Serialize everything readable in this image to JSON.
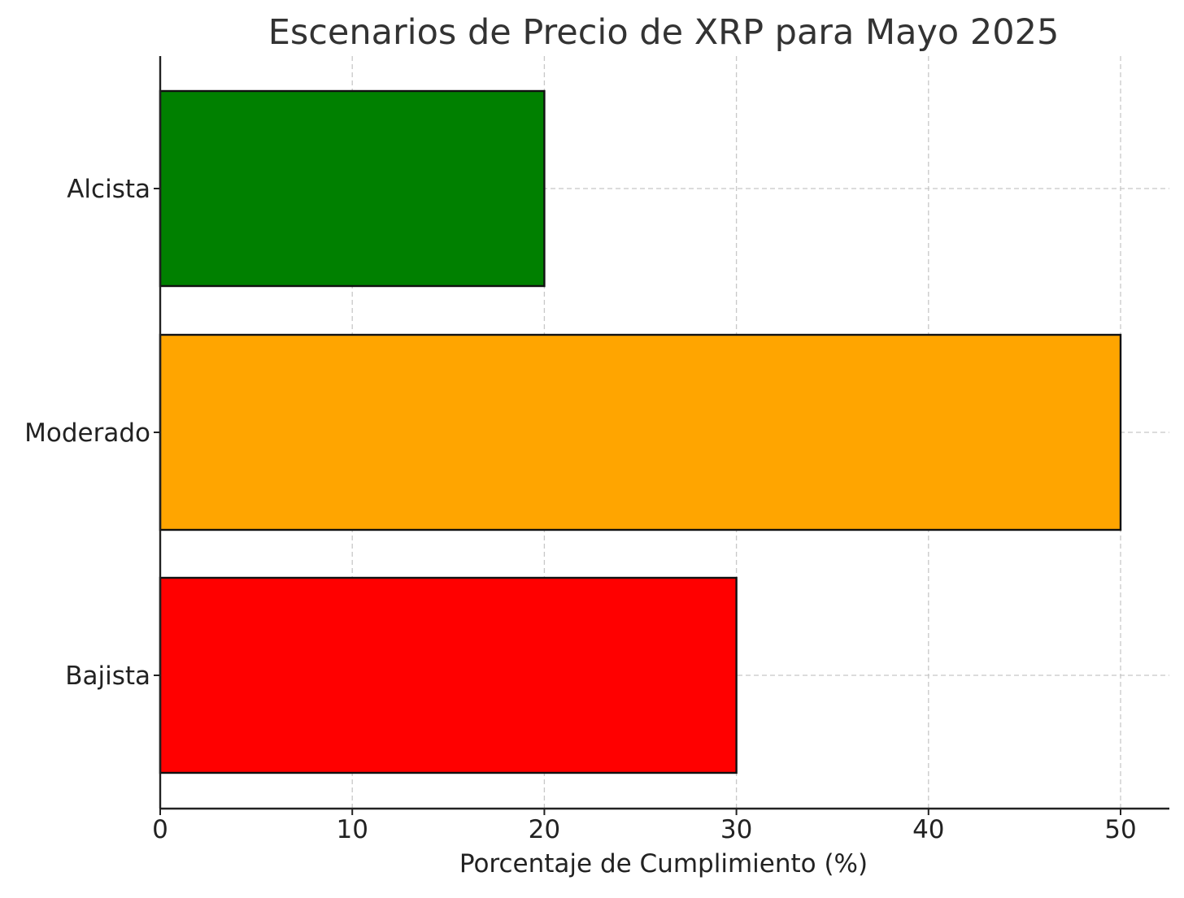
{
  "chart_data": {
    "type": "bar",
    "orientation": "horizontal",
    "title": "Escenarios de Precio de XRP para Mayo 2025",
    "xlabel": "Porcentaje de Cumplimiento (%)",
    "ylabel": "",
    "xlim": [
      0,
      52.5
    ],
    "x_ticks": [
      0,
      10,
      20,
      30,
      40,
      50
    ],
    "categories": [
      "Bajista",
      "Moderado",
      "Alcista"
    ],
    "values": [
      30,
      50,
      20
    ],
    "colors": [
      "#ff0000",
      "#ffa500",
      "#008000"
    ],
    "grid": true,
    "legend": "none"
  }
}
